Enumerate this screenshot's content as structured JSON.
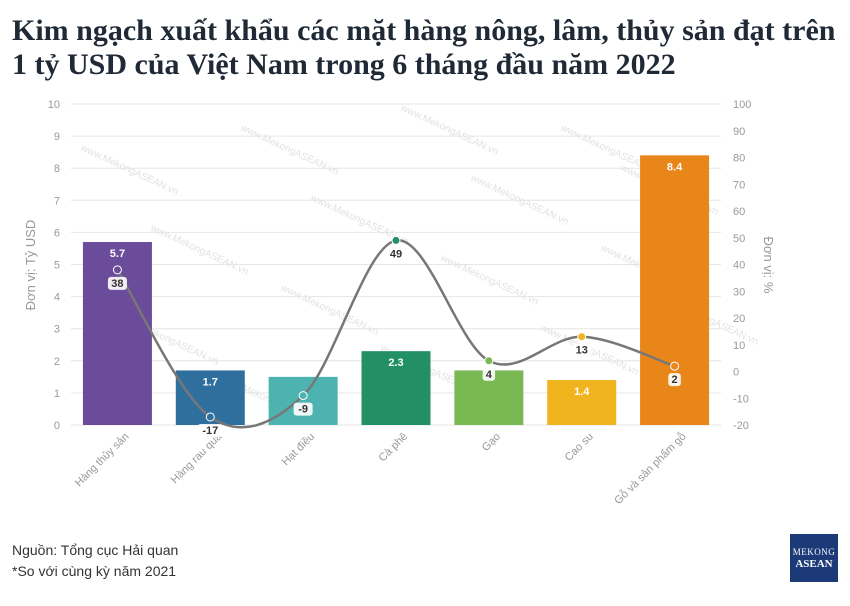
{
  "title_line1": "Kim ngạch xuất khẩu các mặt hàng nông, lâm, thủy sản đạt trên",
  "title_line2": "1 tỷ USD của Việt Nam trong 6 tháng đầu năm 2022",
  "source": "Nguồn: Tổng cục Hải quan",
  "note": "*So với cùng kỳ năm 2021",
  "logo": {
    "line1": "MEKONG",
    "line2": "ASEAN"
  },
  "watermark": "www.MekongASEAN.vn",
  "chart_data": {
    "type": "bar",
    "categories": [
      "Hàng thủy sản",
      "Hàng rau quả",
      "Hạt điều",
      "Cà phê",
      "Gạo",
      "Cao su",
      "Gỗ và sản phẩm gỗ"
    ],
    "ylabel": "Đơn vị: Tỷ USD",
    "y2label": "Đơn vị: %",
    "ylim": [
      0,
      10
    ],
    "y2lim": [
      -20,
      100
    ],
    "yticks": [
      0,
      1,
      2,
      3,
      4,
      5,
      6,
      7,
      8,
      9,
      10
    ],
    "y2ticks": [
      -20,
      -10,
      0,
      10,
      20,
      30,
      40,
      50,
      60,
      70,
      80,
      90,
      100
    ],
    "series": [
      {
        "type": "bar",
        "values": [
          5.7,
          1.7,
          1.5,
          2.3,
          1.7,
          1.4,
          8.4
        ],
        "labels": [
          "5.7",
          "1.7",
          "",
          "2.3",
          "",
          "1.4",
          "8.4"
        ],
        "colors": [
          "#6b4c9a",
          "#2e6f9e",
          "#4db3b0",
          "#229063",
          "#7ab854",
          "#f0b51e",
          "#e8861a"
        ]
      },
      {
        "type": "line",
        "axis": "right",
        "values": [
          38,
          -17,
          -9,
          49,
          4,
          13,
          2
        ],
        "labels": [
          "38",
          "-17",
          "-9",
          "49",
          "4",
          "13",
          "2"
        ],
        "marker_colors": [
          "#6b4c9a",
          "#2e6f9e",
          "#4db3b0",
          "#229063",
          "#7ab854",
          "#f0b51e",
          "#e8861a"
        ],
        "line_color": "#777777"
      }
    ],
    "grid": true
  }
}
